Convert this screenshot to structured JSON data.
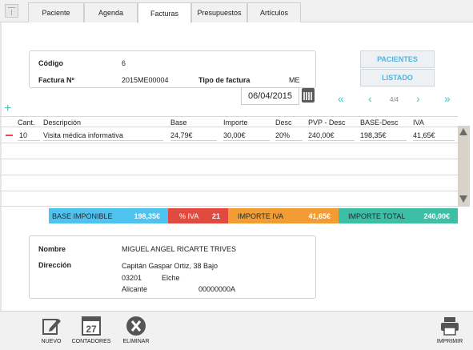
{
  "tabs": [
    "Paciente",
    "Agenda",
    "Facturas",
    "Presupuestos",
    "Artículos"
  ],
  "invoice": {
    "codigo_label": "Código",
    "codigo_value": "6",
    "factura_label": "Factura Nº",
    "factura_value": "2015ME00004",
    "tipo_label": "Tipo de factura",
    "tipo_value": "ME",
    "fecha": "06/04/2015"
  },
  "side_buttons": {
    "pacientes": "PACIENTES",
    "listado": "LISTADO"
  },
  "pager": "4/4",
  "table": {
    "headers": [
      "Cant.",
      "Descripción",
      "Base",
      "Importe",
      "Desc",
      "PVP - Desc",
      "BASE-Desc",
      "IVA"
    ],
    "rows": [
      [
        "10",
        "Visita médica informativa",
        "24,79€",
        "30,00€",
        "20%",
        "240,00€",
        "198,35€",
        "41,65€"
      ]
    ]
  },
  "totals": {
    "base_label": "BASE IMPONIBLE",
    "base_value": "198,35€",
    "iva_pct_label": "% IVA",
    "iva_pct_value": "21",
    "iva_label": "IMPORTE IVA",
    "iva_value": "41,65€",
    "total_label": "IMPORTE TOTAL",
    "total_value": "240,00€"
  },
  "patient": {
    "nombre_label": "Nombre",
    "nombre_value": "MIGUEL ANGEL RICARTE TRIVES",
    "direccion_label": "Dirección",
    "street": "Capitán Gaspar Ortiz, 38 Bajo",
    "postal": "03201",
    "city": "Elche",
    "province": "Alicante",
    "id": "00000000A"
  },
  "footer": {
    "nuevo": "NUEVO",
    "contadores": "CONTADORES",
    "contadores_icon_text": "27",
    "eliminar": "ELIMINAR",
    "imprimir": "IMPRIMIR"
  },
  "colors": {
    "base": "#4ec3ef",
    "iva_pct": "#e04a3f",
    "iva": "#f39c33",
    "total": "#3dbfa5",
    "accent": "#43c6c1"
  }
}
